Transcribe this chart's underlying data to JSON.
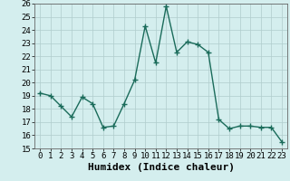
{
  "x": [
    0,
    1,
    2,
    3,
    4,
    5,
    6,
    7,
    8,
    9,
    10,
    11,
    12,
    13,
    14,
    15,
    16,
    17,
    18,
    19,
    20,
    21,
    22,
    23
  ],
  "y": [
    19.2,
    19.0,
    18.2,
    17.4,
    18.9,
    18.4,
    16.6,
    16.7,
    18.4,
    20.2,
    24.3,
    21.5,
    25.8,
    22.3,
    23.1,
    22.9,
    22.3,
    17.2,
    16.5,
    16.7,
    16.7,
    16.6,
    16.6,
    15.5
  ],
  "line_color": "#1a6b5a",
  "marker": "+",
  "marker_size": 4,
  "marker_lw": 1.0,
  "line_width": 1.0,
  "bg_color": "#d4eeee",
  "grid_color": "#b0cccc",
  "xlabel": "Humidex (Indice chaleur)",
  "xlabel_fontsize": 8,
  "tick_fontsize": 6.5,
  "ylim": [
    15,
    26
  ],
  "xlim": [
    -0.5,
    23.5
  ],
  "yticks": [
    15,
    16,
    17,
    18,
    19,
    20,
    21,
    22,
    23,
    24,
    25,
    26
  ],
  "xticks": [
    0,
    1,
    2,
    3,
    4,
    5,
    6,
    7,
    8,
    9,
    10,
    11,
    12,
    13,
    14,
    15,
    16,
    17,
    18,
    19,
    20,
    21,
    22,
    23
  ]
}
